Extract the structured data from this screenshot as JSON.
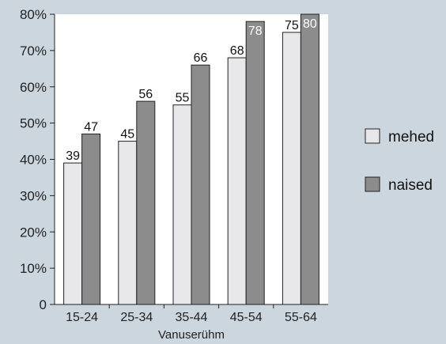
{
  "chart_data": {
    "type": "bar",
    "categories": [
      "15-24",
      "25-34",
      "35-44",
      "45-54",
      "55-64"
    ],
    "series": [
      {
        "name": "mehed",
        "values": [
          39,
          45,
          55,
          68,
          75
        ]
      },
      {
        "name": "naised",
        "values": [
          47,
          56,
          66,
          78,
          80
        ]
      }
    ],
    "xlabel": "Vanuserühm",
    "ylabel": "",
    "ylim": [
      0,
      80
    ],
    "yticks": [
      "0",
      "10%",
      "20%",
      "30%",
      "40%",
      "50%",
      "60%",
      "70%",
      "80%"
    ],
    "grid": false,
    "legend_position": "right",
    "colors": {
      "background": "#cbd6de",
      "plot_area": "#ffffff",
      "mehed": "#e8e8ea",
      "naised": "#8c8c8c",
      "stroke": "#222222"
    }
  }
}
